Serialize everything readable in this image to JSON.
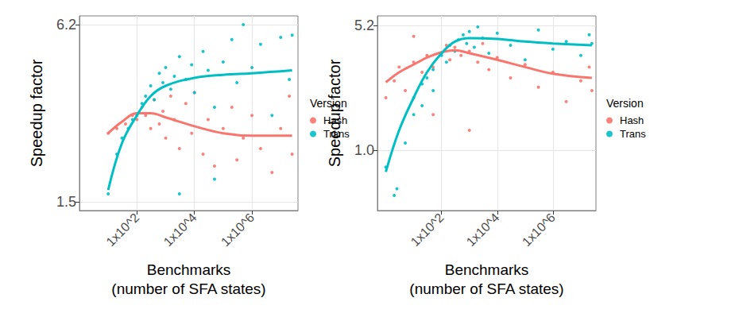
{
  "chart_data": [
    {
      "type": "scatter",
      "x_label": "Benchmarks\n(number of SFA states)",
      "y_label": "Speedup factor",
      "legend_title": "Version",
      "log": true,
      "grid": true,
      "legend": "right",
      "marker": "circle",
      "line_style": "solid",
      "xlim": [
        1,
        40000000
      ],
      "xticks": [
        {
          "value": 100,
          "label": "1x10^2"
        },
        {
          "value": 10000,
          "label": "1x10^4"
        },
        {
          "value": 1000000,
          "label": "1x10^6"
        }
      ],
      "ylim": [
        1.4,
        6.65
      ],
      "yticks": [
        1.5,
        6.2
      ],
      "series": [
        {
          "name": "Hash",
          "color": "#f8766d",
          "x": [
            10,
            20,
            40,
            70,
            100,
            150,
            200,
            300,
            400,
            600,
            800,
            1000,
            1500,
            2000,
            3000,
            5000,
            8000,
            10000,
            20000,
            30000,
            50000,
            100000,
            200000,
            300000,
            500000,
            1000000,
            2000000,
            5000000,
            10000000,
            20000000,
            25000000
          ],
          "values": [
            2.6,
            2.7,
            2.8,
            3.0,
            2.9,
            3.2,
            3.0,
            2.7,
            3.4,
            2.8,
            3.1,
            2.5,
            3.5,
            2.9,
            2.3,
            3.3,
            2.6,
            3.6,
            2.2,
            2.9,
            2.0,
            2.7,
            3.2,
            2.1,
            2.5,
            3.0,
            2.3,
            1.9,
            2.7,
            3.5,
            2.2
          ],
          "fit_x": [
            10,
            30,
            100,
            300,
            1000,
            10000,
            100000,
            1000000,
            25000000
          ],
          "fit_values": [
            2.6,
            2.85,
            3.05,
            3.05,
            2.95,
            2.75,
            2.6,
            2.55,
            2.55
          ]
        },
        {
          "name": "Trans",
          "color": "#00bfc4",
          "x": [
            10,
            20,
            30,
            50,
            70,
            100,
            150,
            200,
            300,
            400,
            600,
            800,
            1000,
            1500,
            2000,
            3000,
            3000,
            5000,
            8000,
            10000,
            20000,
            30000,
            50000,
            50000,
            100000,
            200000,
            300000,
            500000,
            1000000,
            2000000,
            5000000,
            10000000,
            20000000,
            25000000
          ],
          "values": [
            1.6,
            2.2,
            2.5,
            2.7,
            2.9,
            3.0,
            3.3,
            3.5,
            3.8,
            3.4,
            4.2,
            3.9,
            4.4,
            3.7,
            4.1,
            4.8,
            1.6,
            4.0,
            4.5,
            3.6,
            5.0,
            4.3,
            3.2,
            1.8,
            4.6,
            5.5,
            3.9,
            6.2,
            4.4,
            5.3,
            3.0,
            5.6,
            4.0,
            5.7
          ],
          "fit_x": [
            10,
            30,
            100,
            300,
            1000,
            10000,
            100000,
            1000000,
            25000000
          ],
          "fit_values": [
            1.65,
            2.4,
            3.0,
            3.5,
            3.8,
            4.05,
            4.15,
            4.2,
            4.3
          ]
        }
      ]
    },
    {
      "type": "scatter",
      "x_label": "Benchmarks\n(number of SFA states)",
      "y_label": "Speedup factor",
      "legend_title": "Version",
      "log": true,
      "grid": true,
      "legend": "right",
      "marker": "circle",
      "line_style": "solid",
      "xlim": [
        0.5,
        35000000
      ],
      "xticks": [
        {
          "value": 100,
          "label": "1x10^2"
        },
        {
          "value": 10000,
          "label": "1x10^4"
        },
        {
          "value": 1000000,
          "label": "1x10^6"
        }
      ],
      "ylim": [
        0.45,
        5.9
      ],
      "yticks": [
        {
          "value": 1,
          "label": "1.0"
        },
        5.2
      ],
      "series": [
        {
          "name": "Hash",
          "color": "#f8766d",
          "x": [
            1,
            2,
            3,
            5,
            10,
            10,
            20,
            30,
            50,
            100,
            150,
            200,
            300,
            500,
            1000,
            2000,
            3000,
            5000,
            10000,
            30000,
            100000,
            300000,
            1000000,
            3000000,
            10000000,
            20000000,
            25000000,
            1000,
            50
          ],
          "values": [
            2.0,
            2.5,
            3.0,
            2.2,
            3.2,
            4.5,
            2.8,
            3.5,
            3.0,
            3.6,
            4.0,
            3.3,
            3.9,
            3.5,
            3.7,
            3.2,
            4.1,
            2.9,
            3.4,
            2.6,
            3.1,
            2.3,
            2.8,
            1.9,
            2.5,
            3.0,
            2.2,
            1.3,
            1.6
          ],
          "fit_x": [
            1,
            3,
            10,
            30,
            100,
            300,
            1000,
            10000,
            100000,
            1000000,
            25000000
          ],
          "fit_values": [
            2.45,
            2.8,
            3.1,
            3.4,
            3.65,
            3.75,
            3.6,
            3.3,
            3.0,
            2.75,
            2.6
          ]
        },
        {
          "name": "Trans",
          "color": "#00bfc4",
          "x": [
            2,
            2.5,
            1,
            5,
            10,
            10,
            20,
            20,
            30,
            50,
            50,
            100,
            150,
            200,
            300,
            400,
            600,
            800,
            1000,
            1500,
            2000,
            3000,
            5000,
            10000,
            30000,
            100000,
            300000,
            1000000,
            3000000,
            10000000,
            20000000,
            25000000
          ],
          "values": [
            0.55,
            0.6,
            0.8,
            1.1,
            1.6,
            2.0,
            1.8,
            2.4,
            2.6,
            2.9,
            2.2,
            3.5,
            3.2,
            4.0,
            3.7,
            4.3,
            4.6,
            4.1,
            4.8,
            3.9,
            5.1,
            4.4,
            3.6,
            4.7,
            4.0,
            3.3,
            4.9,
            3.8,
            4.2,
            3.5,
            4.6,
            4.1
          ],
          "fit_x": [
            1,
            3,
            10,
            30,
            100,
            300,
            1000,
            10000,
            100000,
            1000000,
            25000000
          ],
          "fit_values": [
            0.75,
            1.3,
            2.0,
            2.8,
            3.6,
            4.2,
            4.4,
            4.35,
            4.2,
            4.1,
            4.0
          ]
        }
      ]
    }
  ]
}
